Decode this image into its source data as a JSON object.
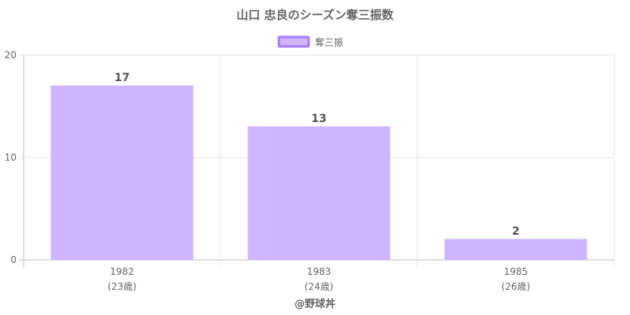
{
  "chart_data": {
    "type": "bar",
    "title": "山口 忠良のシーズン奪三振数",
    "categories": [
      "1982",
      "1983",
      "1985"
    ],
    "category_sublabels": [
      "(23歳)",
      "(24歳)",
      "(26歳)"
    ],
    "series": [
      {
        "name": "奪三振",
        "values": [
          17,
          13,
          2
        ]
      }
    ],
    "ylim": [
      0,
      20
    ],
    "yticks": [
      0,
      10,
      20
    ],
    "data_labels": [
      "17",
      "13",
      "2"
    ],
    "grid": true,
    "legend": "top-center",
    "footer": "@野球丼",
    "colors": {
      "bar_fill": "#cfb5ff",
      "bar_stroke": "#a57cff",
      "grid": "#e6e6e6",
      "axis": "#bdbdbd",
      "text": "#666666"
    }
  }
}
